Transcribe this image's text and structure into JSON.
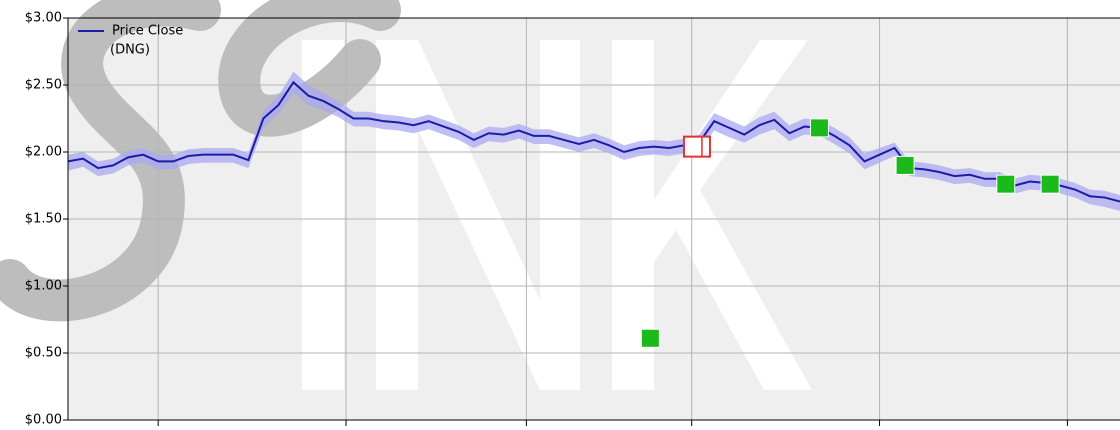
{
  "chart_data": {
    "type": "line",
    "x": [
      0,
      2,
      4,
      6,
      8,
      10,
      12,
      14,
      16,
      18,
      20,
      22,
      24,
      26,
      28,
      30,
      32,
      34,
      36,
      38,
      40,
      42,
      44,
      46,
      48,
      50,
      52,
      54,
      56,
      58,
      60,
      62,
      64,
      66,
      68,
      70,
      72,
      74,
      76,
      78,
      80,
      82,
      84,
      86,
      88,
      90,
      92,
      94,
      96,
      98,
      100,
      102,
      104,
      106,
      108,
      110,
      112,
      114,
      116,
      118,
      120,
      122,
      124,
      126,
      128,
      130,
      132,
      134,
      136,
      138,
      140
    ],
    "series": [
      {
        "name": "Price Close",
        "ticker": "(DNG)",
        "color": "#1c1ca8",
        "values": [
          1.93,
          1.95,
          1.88,
          1.9,
          1.96,
          1.98,
          1.93,
          1.93,
          1.97,
          1.98,
          1.98,
          1.98,
          1.94,
          2.25,
          2.35,
          2.52,
          2.42,
          2.38,
          2.32,
          2.25,
          2.25,
          2.23,
          2.22,
          2.2,
          2.23,
          2.19,
          2.15,
          2.09,
          2.14,
          2.13,
          2.16,
          2.12,
          2.12,
          2.09,
          2.06,
          2.09,
          2.05,
          2.0,
          2.03,
          2.04,
          2.03,
          2.05,
          2.07,
          2.23,
          2.18,
          2.13,
          2.2,
          2.24,
          2.14,
          2.19,
          2.18,
          2.12,
          2.05,
          1.93,
          1.98,
          2.03,
          1.88,
          1.87,
          1.85,
          1.82,
          1.83,
          1.8,
          1.8,
          1.75,
          1.78,
          1.77,
          1.75,
          1.72,
          1.67,
          1.66,
          1.63
        ]
      }
    ],
    "band": {
      "color": "#aaaaf2",
      "upper": [
        1.98,
        2.0,
        1.93,
        1.95,
        2.01,
        2.03,
        1.98,
        1.98,
        2.02,
        2.03,
        2.03,
        2.03,
        1.99,
        2.31,
        2.42,
        2.6,
        2.5,
        2.44,
        2.38,
        2.3,
        2.3,
        2.28,
        2.27,
        2.25,
        2.28,
        2.24,
        2.2,
        2.14,
        2.19,
        2.18,
        2.21,
        2.17,
        2.17,
        2.14,
        2.11,
        2.14,
        2.1,
        2.05,
        2.08,
        2.09,
        2.08,
        2.1,
        2.13,
        2.29,
        2.24,
        2.19,
        2.26,
        2.3,
        2.2,
        2.25,
        2.24,
        2.18,
        2.11,
        1.99,
        2.03,
        2.07,
        1.93,
        1.92,
        1.9,
        1.87,
        1.88,
        1.85,
        1.85,
        1.8,
        1.83,
        1.82,
        1.8,
        1.77,
        1.72,
        1.71,
        1.68
      ],
      "lower": [
        1.86,
        1.89,
        1.82,
        1.84,
        1.9,
        1.92,
        1.87,
        1.87,
        1.91,
        1.92,
        1.92,
        1.92,
        1.88,
        2.18,
        2.28,
        2.44,
        2.35,
        2.31,
        2.26,
        2.19,
        2.19,
        2.17,
        2.16,
        2.14,
        2.17,
        2.13,
        2.09,
        2.03,
        2.08,
        2.07,
        2.1,
        2.06,
        2.06,
        2.03,
        2.0,
        2.03,
        1.99,
        1.94,
        1.97,
        1.98,
        1.97,
        1.99,
        2.01,
        2.16,
        2.11,
        2.07,
        2.13,
        2.17,
        2.08,
        2.13,
        2.12,
        2.06,
        1.99,
        1.87,
        1.92,
        1.97,
        1.82,
        1.81,
        1.79,
        1.76,
        1.77,
        1.74,
        1.74,
        1.69,
        1.72,
        1.71,
        1.69,
        1.66,
        1.61,
        1.59,
        1.56
      ]
    },
    "markers": [
      {
        "x": 77.5,
        "value": 0.61,
        "color": "#1aba1a",
        "style": "filled"
      },
      {
        "x": 83.7,
        "value": 2.04,
        "color": "#e83030",
        "style": "open"
      },
      {
        "x": 100,
        "value": 2.18,
        "color": "#1aba1a",
        "style": "filled"
      },
      {
        "x": 111.4,
        "value": 1.9,
        "color": "#1aba1a",
        "style": "filled"
      },
      {
        "x": 124.8,
        "value": 1.76,
        "color": "#1aba1a",
        "style": "filled"
      },
      {
        "x": 130.7,
        "value": 1.76,
        "color": "#1aba1a",
        "style": "filled"
      }
    ],
    "xlim": [
      0,
      140
    ],
    "xticks": [
      12,
      37,
      61,
      83,
      108,
      133
    ],
    "ylim": [
      0,
      3
    ],
    "yticks": [
      {
        "value": 0,
        "label": "$0.00"
      },
      {
        "value": 0.5,
        "label": "$0.50"
      },
      {
        "value": 1,
        "label": "$1.00"
      },
      {
        "value": 1.5,
        "label": "$1.50"
      },
      {
        "value": 2,
        "label": "$2.00"
      },
      {
        "value": 2.5,
        "label": "$2.50"
      },
      {
        "value": 3,
        "label": "$3.00"
      }
    ],
    "grid": true,
    "legend": "upper left"
  }
}
